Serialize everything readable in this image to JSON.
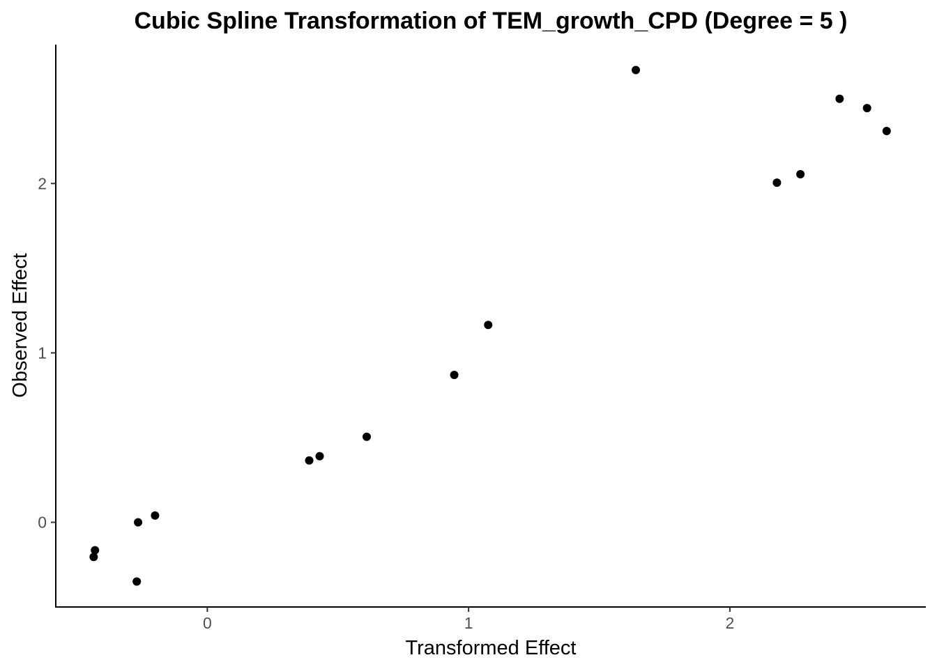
{
  "chart_data": {
    "type": "scatter",
    "title": "Cubic Spline Transformation of TEM_growth_CPD (Degree = 5 )",
    "xlabel": "Transformed Effect",
    "ylabel": "Observed Effect",
    "xlim": [
      -0.58,
      2.75
    ],
    "ylim": [
      -0.5,
      2.82
    ],
    "xticks": [
      0,
      1,
      2
    ],
    "yticks": [
      0,
      1,
      2
    ],
    "xtick_labels": [
      "0",
      "1",
      "2"
    ],
    "ytick_labels": [
      "0",
      "1",
      "2"
    ],
    "grid": false,
    "legend": "none",
    "point_color": "#000000",
    "points": [
      {
        "x": -0.435,
        "y": -0.205
      },
      {
        "x": -0.43,
        "y": -0.165
      },
      {
        "x": -0.27,
        "y": -0.35
      },
      {
        "x": -0.265,
        "y": 0.0
      },
      {
        "x": -0.2,
        "y": 0.04
      },
      {
        "x": 0.39,
        "y": 0.365
      },
      {
        "x": 0.43,
        "y": 0.39
      },
      {
        "x": 0.61,
        "y": 0.505
      },
      {
        "x": 0.945,
        "y": 0.87
      },
      {
        "x": 1.075,
        "y": 1.165
      },
      {
        "x": 1.64,
        "y": 2.67
      },
      {
        "x": 2.18,
        "y": 2.005
      },
      {
        "x": 2.27,
        "y": 2.055
      },
      {
        "x": 2.42,
        "y": 2.5
      },
      {
        "x": 2.525,
        "y": 2.445
      },
      {
        "x": 2.6,
        "y": 2.31
      }
    ]
  }
}
